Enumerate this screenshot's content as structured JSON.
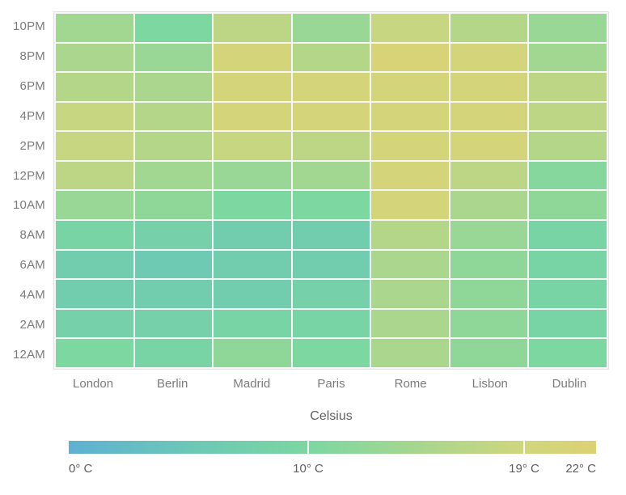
{
  "chart_data": {
    "type": "heatmap",
    "title": "",
    "xlabel": "Celsius",
    "ylabel": "",
    "unit": "° C",
    "x_categories": [
      "London",
      "Berlin",
      "Madrid",
      "Paris",
      "Rome",
      "Lisbon",
      "Dublin"
    ],
    "y_categories": [
      "10PM",
      "8PM",
      "6PM",
      "4PM",
      "2PM",
      "12PM",
      "10AM",
      "8AM",
      "6AM",
      "4AM",
      "2AM",
      "12AM"
    ],
    "values": [
      [
        14,
        10,
        17,
        13,
        18,
        16,
        13
      ],
      [
        15,
        13,
        20,
        16,
        21,
        20,
        14
      ],
      [
        16,
        15,
        20,
        20,
        20,
        20,
        17
      ],
      [
        18,
        16,
        20,
        20,
        20,
        20,
        17
      ],
      [
        18,
        16,
        18,
        17,
        20,
        20,
        16
      ],
      [
        17,
        14,
        13,
        14,
        20,
        17,
        11
      ],
      [
        13,
        12,
        10,
        10,
        20,
        15,
        12
      ],
      [
        9,
        8,
        7,
        7,
        16,
        13,
        9
      ],
      [
        7,
        6,
        7,
        7,
        15,
        12,
        9
      ],
      [
        7,
        7,
        7,
        8,
        15,
        12,
        9
      ],
      [
        8,
        8,
        9,
        9,
        15,
        12,
        9
      ],
      [
        10,
        9,
        12,
        10,
        15,
        12,
        10
      ]
    ],
    "color_scale": {
      "min": 0,
      "max": 22,
      "stops": [
        {
          "value": 0,
          "color": "#5fb0d2"
        },
        {
          "value": 5,
          "color": "#6cc7b7"
        },
        {
          "value": 10,
          "color": "#7cd7a1"
        },
        {
          "value": 19,
          "color": "#d0d67d"
        },
        {
          "value": 22,
          "color": "#dcd173"
        }
      ]
    },
    "legend": {
      "position": "bottom",
      "labels": [
        "0° C",
        "10° C",
        "19° C",
        "22° C"
      ],
      "label_values": [
        0,
        10,
        19,
        22
      ],
      "tick_values": [
        10,
        19
      ]
    },
    "layout": {
      "grid_lines": "on",
      "grid_line_color": "#f6f6f6",
      "plot_border_color": "#e3e3e3"
    }
  }
}
